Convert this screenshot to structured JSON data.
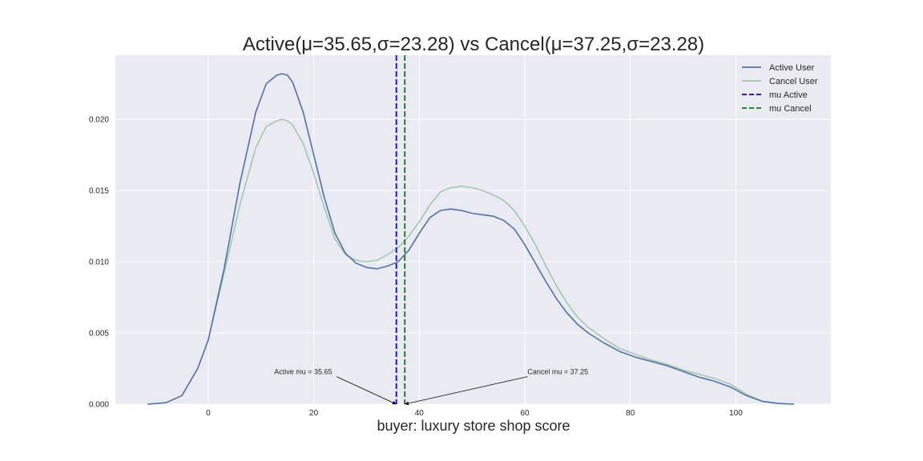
{
  "colors": {
    "plot_bg": "#eaeaf2",
    "grid": "#ffffff",
    "active": "#4c72b0",
    "cancel": "#a1c9a8",
    "mu_active": "#0000ff",
    "mu_cancel": "#008000",
    "text": "#262626"
  },
  "chart_data": {
    "type": "line",
    "title": "Active(μ=35.65,σ=23.28) vs Cancel(μ=37.25,σ=23.28)",
    "xlabel": "buyer: luxury store shop score",
    "ylabel": "",
    "xlim": [
      -17.6,
      118
    ],
    "ylim": [
      0,
      0.0245
    ],
    "xticks": [
      0,
      20,
      40,
      60,
      80,
      100
    ],
    "xtick_labels": [
      "0",
      "20",
      "40",
      "60",
      "80",
      "100"
    ],
    "yticks": [
      0.0,
      0.005,
      0.01,
      0.015,
      0.02
    ],
    "ytick_labels": [
      "0.000",
      "0.005",
      "0.010",
      "0.015",
      "0.020"
    ],
    "grid": true,
    "legend_position": "top-right",
    "series": [
      {
        "name": "Active User",
        "color": "#4c72b0",
        "x": [
          -11.5,
          -8,
          -5,
          -2,
          0,
          3,
          6,
          9,
          11,
          13,
          14,
          15,
          16,
          18,
          20,
          22,
          24,
          26,
          28,
          30,
          32,
          34,
          36,
          38,
          40,
          42,
          44,
          46,
          48,
          50,
          52,
          54,
          56,
          58,
          60,
          62,
          64,
          66,
          68,
          70,
          72,
          75,
          78,
          81,
          84,
          87,
          90,
          93,
          96,
          99,
          102,
          105,
          108,
          111
        ],
        "y": [
          0,
          0.0001,
          0.0006,
          0.0025,
          0.0045,
          0.0095,
          0.0155,
          0.0205,
          0.0225,
          0.0231,
          0.0232,
          0.0231,
          0.0226,
          0.0205,
          0.0175,
          0.0145,
          0.012,
          0.0106,
          0.0099,
          0.0096,
          0.0095,
          0.0097,
          0.01,
          0.0108,
          0.012,
          0.0131,
          0.0136,
          0.0137,
          0.0136,
          0.0134,
          0.0133,
          0.0132,
          0.0129,
          0.0123,
          0.0112,
          0.0099,
          0.0086,
          0.0074,
          0.0064,
          0.0056,
          0.005,
          0.0043,
          0.0037,
          0.0033,
          0.003,
          0.0027,
          0.0023,
          0.0019,
          0.0016,
          0.0012,
          0.0006,
          0.0002,
          5e-05,
          0
        ]
      },
      {
        "name": "Cancel User",
        "color": "#a1c9a8",
        "x": [
          -11.5,
          -8,
          -5,
          -2,
          0,
          3,
          6,
          9,
          11,
          13,
          14,
          15,
          16,
          18,
          20,
          22,
          24,
          26,
          28,
          30,
          32,
          34,
          36,
          38,
          40,
          42,
          44,
          46,
          48,
          50,
          52,
          54,
          56,
          58,
          60,
          62,
          64,
          66,
          68,
          70,
          72,
          75,
          78,
          81,
          84,
          87,
          90,
          93,
          96,
          99,
          102,
          105,
          108,
          111
        ],
        "y": [
          0,
          0.0001,
          0.0006,
          0.0025,
          0.0045,
          0.0092,
          0.014,
          0.018,
          0.0195,
          0.0199,
          0.02,
          0.0199,
          0.0196,
          0.0183,
          0.0162,
          0.0138,
          0.0116,
          0.0105,
          0.0101,
          0.01,
          0.0101,
          0.0105,
          0.011,
          0.0118,
          0.0128,
          0.014,
          0.0149,
          0.0152,
          0.0153,
          0.0152,
          0.015,
          0.0147,
          0.0143,
          0.0136,
          0.0125,
          0.0112,
          0.0097,
          0.0083,
          0.0071,
          0.0061,
          0.0054,
          0.0046,
          0.0039,
          0.0035,
          0.0031,
          0.0028,
          0.0024,
          0.0021,
          0.0018,
          0.0014,
          0.0007,
          0.0002,
          5e-05,
          0
        ]
      }
    ],
    "vlines": [
      {
        "name": "mu Active",
        "x": 35.65,
        "color": "#0000ff",
        "style": "dashed"
      },
      {
        "name": "mu Cancel",
        "x": 37.25,
        "color": "#008000",
        "style": "dashed"
      }
    ],
    "annotations": [
      {
        "text": "Active mu = 35.65",
        "text_at": [
          12.5,
          0.0021
        ],
        "point": [
          35.65,
          0
        ]
      },
      {
        "text": "Cancel mu = 37.25",
        "text_at": [
          60.5,
          0.0021
        ],
        "point": [
          37.25,
          0
        ]
      }
    ],
    "legend": [
      {
        "label": "Active User",
        "color": "#4c72b0",
        "style": "solid"
      },
      {
        "label": "Cancel User",
        "color": "#a1c9a8",
        "style": "solid"
      },
      {
        "label": "mu Active",
        "color": "#0000ff",
        "style": "dashed"
      },
      {
        "label": "mu Cancel",
        "color": "#008000",
        "style": "dashed"
      }
    ]
  }
}
